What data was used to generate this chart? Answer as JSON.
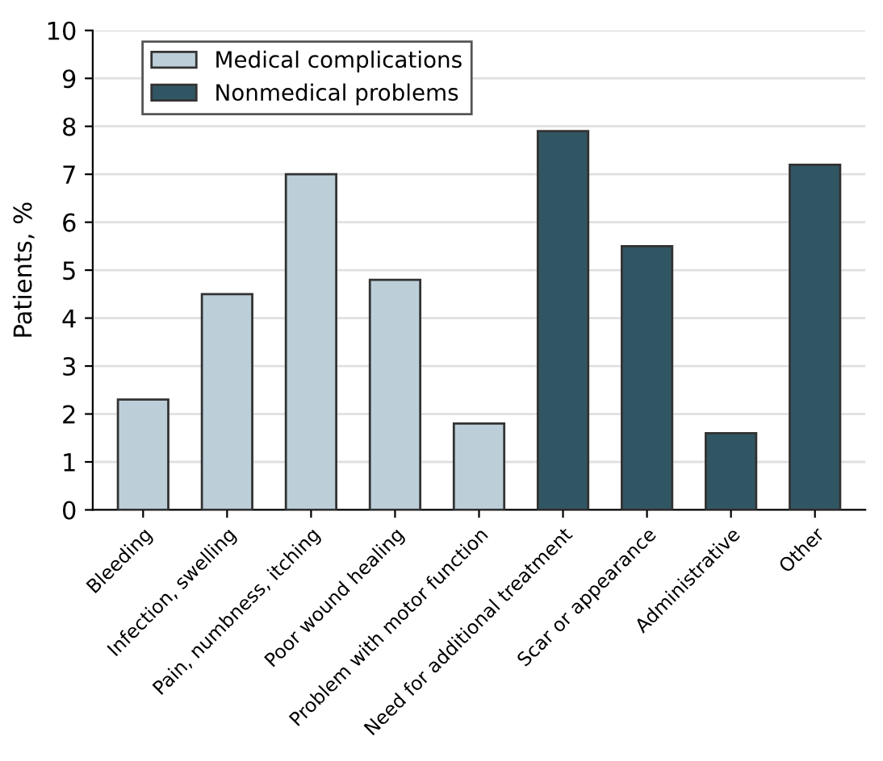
{
  "chart_data": {
    "type": "bar",
    "ylabel": "Patients, %",
    "categories": [
      "Bleeding",
      "Infection, swelling",
      "Pain, numbness, itching",
      "Poor wound healing",
      "Problem with motor function",
      "Need for additional treatment",
      "Scar or appearance",
      "Administrative",
      "Other"
    ],
    "series": [
      {
        "name": "Medical complications",
        "color": "#bccfd9",
        "values": [
          2.3,
          4.5,
          7.0,
          4.8,
          1.8,
          null,
          null,
          null,
          null
        ]
      },
      {
        "name": "Nonmedical problems",
        "color": "#315663",
        "values": [
          null,
          null,
          null,
          null,
          null,
          7.9,
          5.5,
          1.6,
          7.2
        ]
      }
    ],
    "ylim": [
      0,
      10
    ],
    "yticks": [
      0,
      1,
      2,
      3,
      4,
      5,
      6,
      7,
      8,
      9,
      10
    ],
    "grid": "y",
    "legend": "top left"
  }
}
